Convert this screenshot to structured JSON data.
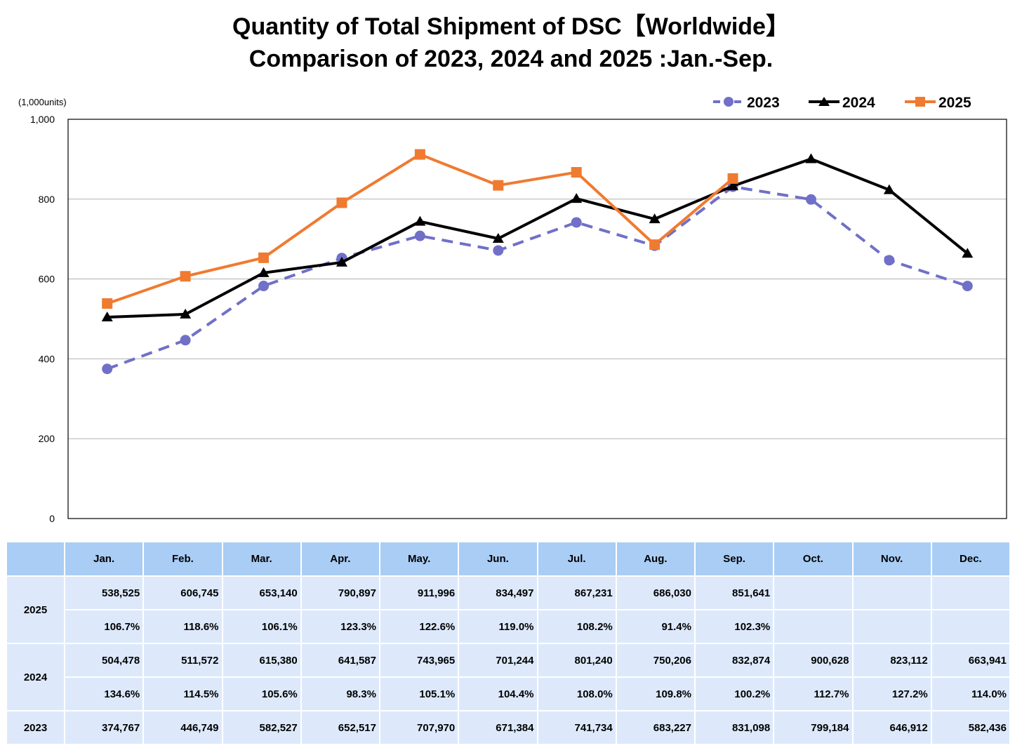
{
  "chart_data": {
    "type": "line",
    "title": "Quantity of Total Shipment of DSC【Worldwide】",
    "subtitle": "Comparison of 2023, 2024 and 2025 :Jan.-Sep.",
    "unit_label": "(1,000units)",
    "categories": [
      "Jan.",
      "Feb.",
      "Mar.",
      "Apr.",
      "May.",
      "Jun.",
      "Jul.",
      "Aug.",
      "Sep.",
      "Oct.",
      "Nov.",
      "Dec."
    ],
    "ylim": [
      0,
      1000
    ],
    "yticks": [
      "0",
      "200",
      "400",
      "600",
      "800",
      "1,000"
    ],
    "grid": true,
    "legend_position": "top-right",
    "series": [
      {
        "name": "2023",
        "color": "#7070c8",
        "style": "dashed",
        "marker": "circle",
        "values": [
          374.767,
          446.749,
          582.527,
          652.517,
          707.97,
          671.384,
          741.734,
          683.227,
          831.098,
          799.184,
          646.912,
          582.436
        ]
      },
      {
        "name": "2024",
        "color": "#000000",
        "style": "solid",
        "marker": "triangle",
        "values": [
          504.478,
          511.572,
          615.38,
          641.587,
          743.965,
          701.244,
          801.24,
          750.206,
          832.874,
          900.628,
          823.112,
          663.941
        ]
      },
      {
        "name": "2025",
        "color": "#f07a30",
        "style": "solid",
        "marker": "square",
        "values": [
          538.525,
          606.745,
          653.14,
          790.897,
          911.996,
          834.497,
          867.231,
          686.03,
          851.641,
          null,
          null,
          null
        ]
      }
    ]
  },
  "table": {
    "header": [
      "Jan.",
      "Feb.",
      "Mar.",
      "Apr.",
      "May.",
      "Jun.",
      "Jul.",
      "Aug.",
      "Sep.",
      "Oct.",
      "Nov.",
      "Dec."
    ],
    "rows": [
      {
        "label": "2025",
        "values": [
          "538,525",
          "606,745",
          "653,140",
          "790,897",
          "911,996",
          "834,497",
          "867,231",
          "686,030",
          "851,641",
          "",
          "",
          ""
        ],
        "ratios": [
          "106.7%",
          "118.6%",
          "106.1%",
          "123.3%",
          "122.6%",
          "119.0%",
          "108.2%",
          "91.4%",
          "102.3%",
          "",
          "",
          ""
        ]
      },
      {
        "label": "2024",
        "values": [
          "504,478",
          "511,572",
          "615,380",
          "641,587",
          "743,965",
          "701,244",
          "801,240",
          "750,206",
          "832,874",
          "900,628",
          "823,112",
          "663,941"
        ],
        "ratios": [
          "134.6%",
          "114.5%",
          "105.6%",
          "98.3%",
          "105.1%",
          "104.4%",
          "108.0%",
          "109.8%",
          "100.2%",
          "112.7%",
          "127.2%",
          "114.0%"
        ]
      },
      {
        "label": "2023",
        "values": [
          "374,767",
          "446,749",
          "582,527",
          "652,517",
          "707,970",
          "671,384",
          "741,734",
          "683,227",
          "831,098",
          "799,184",
          "646,912",
          "582,436"
        ]
      }
    ]
  }
}
